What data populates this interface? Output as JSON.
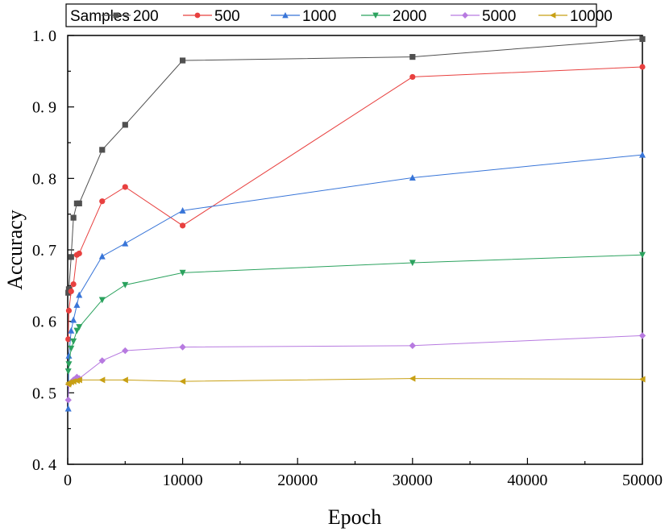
{
  "chart_data": {
    "type": "line",
    "title": "",
    "xlabel": "Epoch",
    "ylabel": "Accuracy",
    "xlim": [
      0,
      50000
    ],
    "ylim": [
      0.4,
      1.0
    ],
    "x_ticks": [
      0,
      10000,
      20000,
      30000,
      40000,
      50000
    ],
    "x_tick_labels": [
      "0",
      "10000",
      "20000",
      "30000",
      "40000",
      "50000"
    ],
    "y_ticks": [
      0.4,
      0.5,
      0.6,
      0.7,
      0.8,
      0.9,
      1.0
    ],
    "y_tick_labels": [
      "0. 4",
      "0. 5",
      "0. 6",
      "0. 7",
      "0. 8",
      "0. 9",
      "1. 0"
    ],
    "grid": false,
    "legend": {
      "title": "Samples",
      "placement": "top"
    },
    "x": [
      50,
      100,
      300,
      500,
      800,
      1000,
      3000,
      5000,
      10000,
      30000,
      50000
    ],
    "series": [
      {
        "name": "200",
        "color": "#505050",
        "marker": "square",
        "values": [
          0.64,
          0.645,
          0.69,
          0.745,
          0.765,
          0.765,
          0.84,
          0.875,
          0.965,
          0.97,
          0.995
        ]
      },
      {
        "name": "500",
        "color": "#e8403f",
        "marker": "circle",
        "values": [
          0.575,
          0.615,
          0.642,
          0.652,
          0.693,
          0.695,
          0.768,
          0.788,
          0.734,
          0.942,
          0.956
        ]
      },
      {
        "name": "1000",
        "color": "#3875d8",
        "marker": "triangle-up",
        "values": [
          0.478,
          0.552,
          0.587,
          0.602,
          0.623,
          0.637,
          0.691,
          0.709,
          0.755,
          0.801,
          0.833
        ]
      },
      {
        "name": "2000",
        "color": "#2ba25e",
        "marker": "triangle-down",
        "values": [
          0.53,
          0.54,
          0.562,
          0.572,
          0.587,
          0.592,
          0.63,
          0.651,
          0.668,
          0.682,
          0.693
        ]
      },
      {
        "name": "5000",
        "color": "#b77ae0",
        "marker": "diamond",
        "values": [
          0.49,
          0.512,
          0.515,
          0.518,
          0.522,
          0.52,
          0.545,
          0.559,
          0.564,
          0.566,
          0.58
        ]
      },
      {
        "name": "10000",
        "color": "#c8a014",
        "marker": "triangle-left",
        "values": [
          0.512,
          0.514,
          0.515,
          0.516,
          0.517,
          0.518,
          0.518,
          0.518,
          0.516,
          0.52,
          0.519
        ]
      }
    ]
  }
}
